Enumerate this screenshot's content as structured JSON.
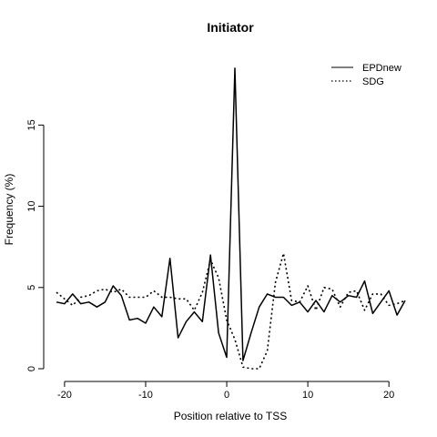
{
  "chart_data": {
    "type": "line",
    "title": "Initiator",
    "xlabel": "Position relative to TSS",
    "ylabel": "Frequency (%)",
    "xlim": [
      -21,
      22
    ],
    "ylim": [
      0,
      19
    ],
    "x_ticks": [
      -20,
      -10,
      0,
      10,
      20
    ],
    "y_ticks": [
      0,
      5,
      10,
      15
    ],
    "x_tick_labels": [
      "-20",
      "-10",
      "0",
      "10",
      "20"
    ],
    "y_tick_labels": [
      "0",
      "5",
      "10",
      "15"
    ],
    "legend_position": "top-right",
    "x": [
      -21,
      -20,
      -19,
      -18,
      -17,
      -16,
      -15,
      -14,
      -13,
      -12,
      -11,
      -10,
      -9,
      -8,
      -7,
      -6,
      -5,
      -4,
      -3,
      -2,
      -1,
      0,
      1,
      2,
      3,
      4,
      5,
      6,
      7,
      8,
      9,
      10,
      11,
      12,
      13,
      14,
      15,
      16,
      17,
      18,
      19,
      20,
      21,
      22
    ],
    "series": [
      {
        "name": "EPDnew",
        "style": "solid",
        "color": "#000000",
        "values": [
          4.1,
          4.0,
          4.6,
          4.0,
          4.1,
          3.8,
          4.1,
          5.1,
          4.5,
          3.0,
          3.1,
          2.8,
          3.8,
          3.2,
          6.8,
          1.9,
          2.9,
          3.5,
          2.9,
          7.0,
          2.2,
          0.7,
          18.5,
          0.5,
          2.2,
          3.8,
          4.6,
          4.4,
          4.4,
          3.9,
          4.1,
          3.5,
          4.2,
          3.5,
          4.5,
          4.1,
          4.5,
          4.4,
          5.4,
          3.4,
          4.1,
          4.8,
          3.3,
          4.2
        ]
      },
      {
        "name": "SDG",
        "style": "dotted",
        "color": "#000000",
        "values": [
          4.7,
          4.3,
          3.9,
          4.4,
          4.5,
          4.8,
          4.9,
          4.7,
          4.9,
          4.4,
          4.4,
          4.4,
          4.8,
          4.4,
          4.4,
          4.3,
          4.3,
          3.6,
          4.7,
          6.7,
          5.6,
          3.0,
          1.8,
          0.1,
          0.0,
          0.0,
          1.1,
          5.3,
          7.1,
          4.2,
          4.1,
          5.1,
          3.6,
          5.0,
          4.9,
          3.8,
          4.7,
          4.8,
          3.6,
          4.6,
          4.6,
          3.9,
          4.0,
          4.2
        ]
      }
    ]
  }
}
